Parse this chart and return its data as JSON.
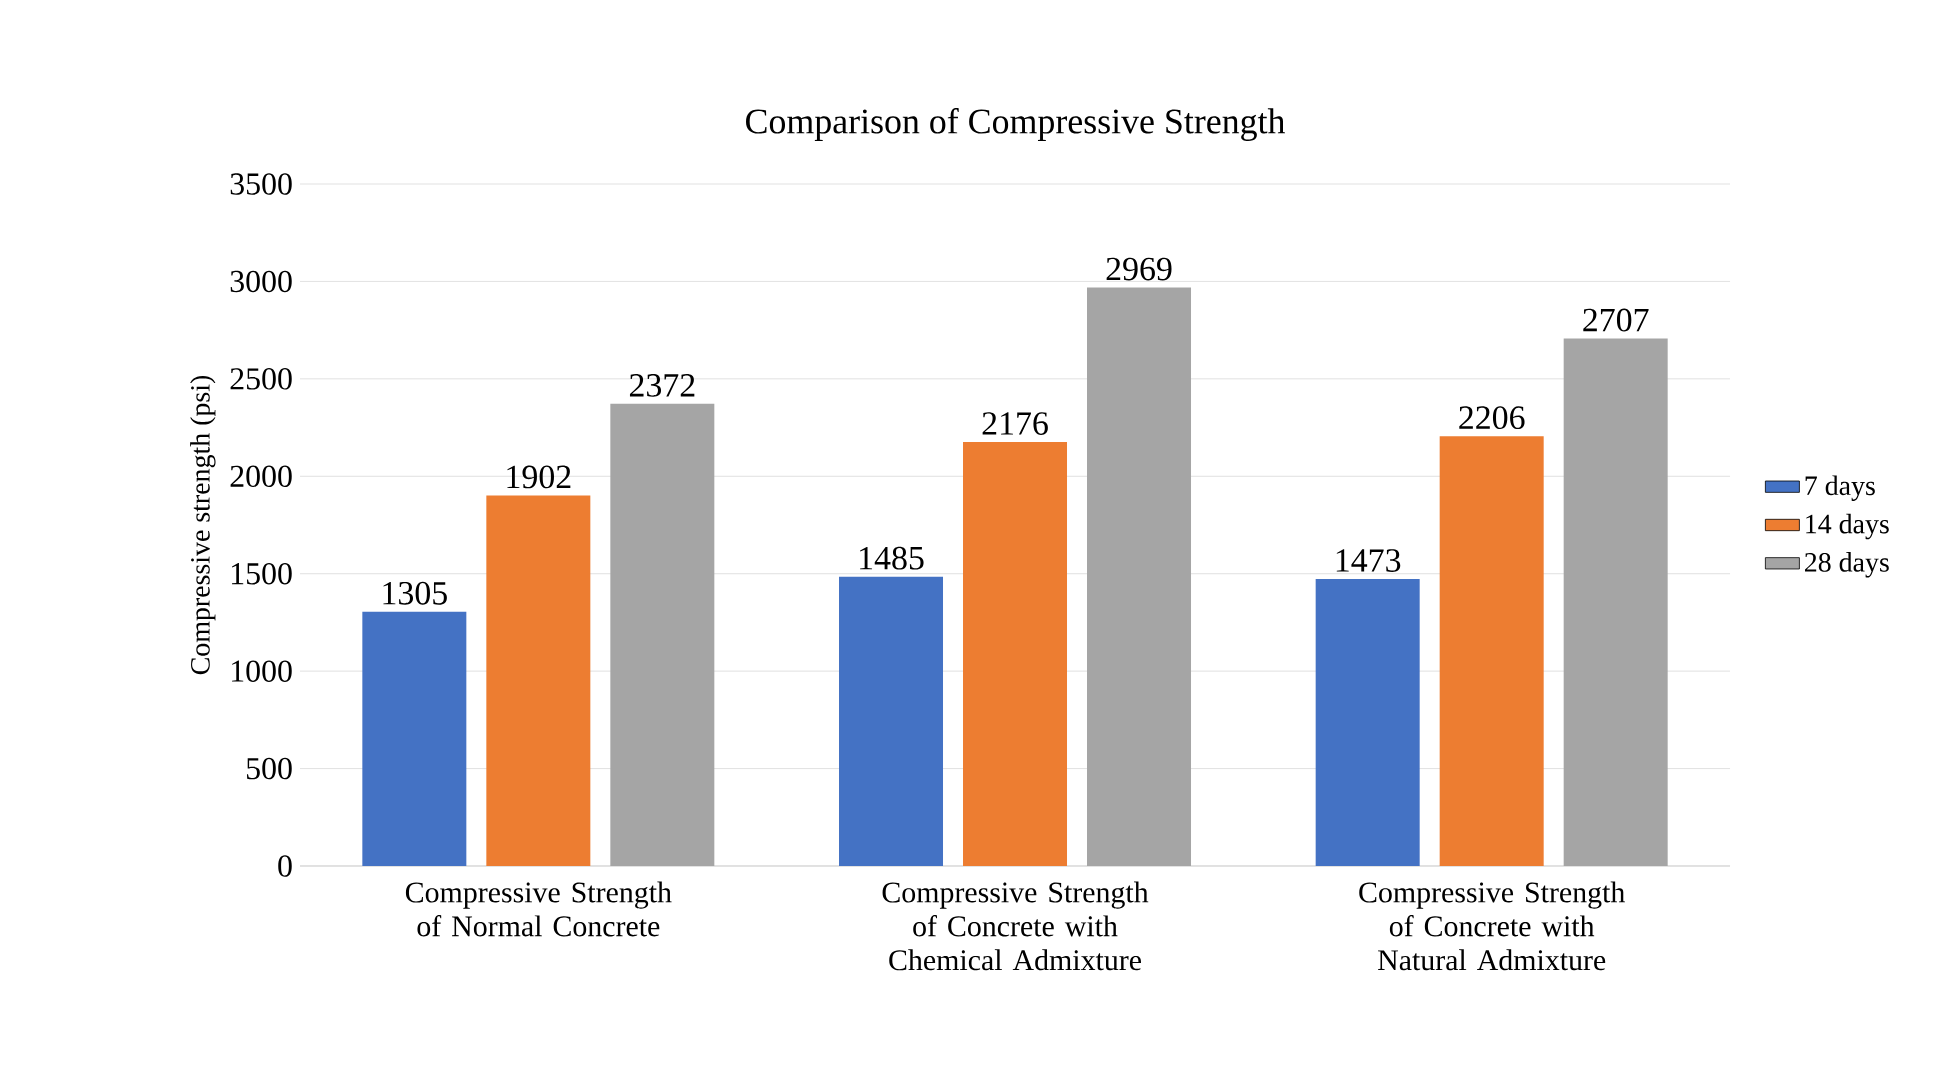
{
  "chart_data": {
    "type": "bar",
    "title": "Comparison of Compressive Strength",
    "ylabel": "Compressive strength (psi)",
    "categories": [
      "Compressive Strength of Normal Concrete",
      "Compressive Strength of Concrete with Chemical Admixture",
      "Compressive Strength of Concrete with Natural Admixture"
    ],
    "series": [
      {
        "name": "7 days",
        "color": "#4472c4",
        "values": [
          1305,
          1485,
          1473
        ]
      },
      {
        "name": "14 days",
        "color": "#ed7d31",
        "values": [
          1902,
          2176,
          2206
        ]
      },
      {
        "name": "28 days",
        "color": "#a5a5a5",
        "values": [
          2372,
          2969,
          2707
        ]
      }
    ],
    "ylim": [
      0,
      3500
    ],
    "yticks": [
      0,
      500,
      1000,
      1500,
      2000,
      2500,
      3000,
      3500
    ],
    "grid": "y",
    "legend": "right",
    "data_labels": true
  }
}
